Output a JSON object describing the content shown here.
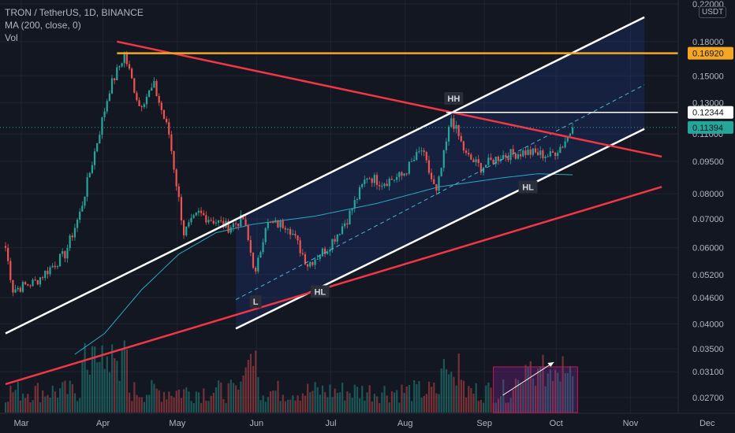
{
  "header": {
    "symbol_line": "TRON / TetherUS, 1D, BINANCE",
    "ma_line": "MA (200, close, 0)",
    "vol_line": "Vol",
    "currency_badge": "USDT"
  },
  "chart_data": {
    "type": "candlestick",
    "symbol": "TRON / TetherUS",
    "interval": "1D",
    "exchange": "BINANCE",
    "scale": "log",
    "x_labels": [
      "Mar",
      "Apr",
      "May",
      "Jun",
      "Jul",
      "Aug",
      "Sep",
      "Oct",
      "Nov",
      "Dec"
    ],
    "y_ticks": [
      0.22,
      0.18,
      0.15,
      0.13,
      0.11,
      0.095,
      0.08,
      0.07,
      0.06,
      0.052,
      0.046,
      0.04,
      0.035,
      0.031,
      0.027
    ],
    "y_tick_labels": [
      "0.22000",
      "0.18000",
      "0.15000",
      "0.13000",
      "0.11000",
      "0.09500",
      "0.08000",
      "0.07000",
      "0.06000",
      "0.05200",
      "0.04600",
      "0.04000",
      "0.03500",
      "0.03100",
      "0.02700"
    ],
    "price_path_anchors": [
      {
        "d": 0,
        "p": 0.06
      },
      {
        "d": 3,
        "p": 0.048
      },
      {
        "d": 12,
        "p": 0.05
      },
      {
        "d": 24,
        "p": 0.058
      },
      {
        "d": 30,
        "p": 0.072
      },
      {
        "d": 36,
        "p": 0.1
      },
      {
        "d": 42,
        "p": 0.14
      },
      {
        "d": 48,
        "p": 0.168
      },
      {
        "d": 54,
        "p": 0.128
      },
      {
        "d": 60,
        "p": 0.142
      },
      {
        "d": 66,
        "p": 0.11
      },
      {
        "d": 72,
        "p": 0.065
      },
      {
        "d": 78,
        "p": 0.072
      },
      {
        "d": 90,
        "p": 0.067
      },
      {
        "d": 96,
        "p": 0.07
      },
      {
        "d": 101,
        "p": 0.052
      },
      {
        "d": 105,
        "p": 0.068
      },
      {
        "d": 114,
        "p": 0.068
      },
      {
        "d": 122,
        "p": 0.055
      },
      {
        "d": 130,
        "p": 0.06
      },
      {
        "d": 138,
        "p": 0.07
      },
      {
        "d": 146,
        "p": 0.088
      },
      {
        "d": 152,
        "p": 0.085
      },
      {
        "d": 160,
        "p": 0.088
      },
      {
        "d": 168,
        "p": 0.101
      },
      {
        "d": 174,
        "p": 0.08
      },
      {
        "d": 180,
        "p": 0.12
      },
      {
        "d": 186,
        "p": 0.098
      },
      {
        "d": 192,
        "p": 0.092
      },
      {
        "d": 200,
        "p": 0.098
      },
      {
        "d": 210,
        "p": 0.1
      },
      {
        "d": 220,
        "p": 0.098
      },
      {
        "d": 225,
        "p": 0.104
      },
      {
        "d": 229,
        "p": 0.11394
      }
    ],
    "ma200_anchors": [
      {
        "d": 28,
        "p": 0.034
      },
      {
        "d": 40,
        "p": 0.038
      },
      {
        "d": 55,
        "p": 0.048
      },
      {
        "d": 70,
        "p": 0.058
      },
      {
        "d": 85,
        "p": 0.065
      },
      {
        "d": 100,
        "p": 0.068
      },
      {
        "d": 125,
        "p": 0.071
      },
      {
        "d": 150,
        "p": 0.076
      },
      {
        "d": 175,
        "p": 0.083
      },
      {
        "d": 200,
        "p": 0.087
      },
      {
        "d": 215,
        "p": 0.089
      },
      {
        "d": 229,
        "p": 0.0885
      }
    ],
    "price_labels": [
      {
        "value": 0.1692,
        "text": "0.16920",
        "color": "#f5a623"
      },
      {
        "value": 0.12344,
        "text": "0.12344",
        "color": "#ffffff"
      },
      {
        "value": 0.11394,
        "text": "0.11394",
        "color": "#26a69a"
      }
    ],
    "annotations": [
      {
        "text": "HH",
        "d": 181,
        "p": 0.133
      },
      {
        "text": "HL",
        "d": 211,
        "p": 0.083
      },
      {
        "text": "HL",
        "d": 127,
        "p": 0.0475
      },
      {
        "text": "L",
        "d": 101,
        "p": 0.045
      }
    ],
    "trend_lines": [
      {
        "name": "ascending-channel-upper",
        "color": "#ffffff",
        "from": {
          "d": 0,
          "p": 0.038
        },
        "to": {
          "d": 258,
          "p": 0.205
        }
      },
      {
        "name": "channel-midline",
        "color": "#4fb3d9",
        "from": {
          "d": 93,
          "p": 0.0455
        },
        "to": {
          "d": 258,
          "p": 0.143
        }
      },
      {
        "name": "ascending-channel-lower",
        "color": "#ffffff",
        "from": {
          "d": 93,
          "p": 0.039
        },
        "to": {
          "d": 258,
          "p": 0.113
        }
      },
      {
        "name": "support-trendline",
        "color": "#f23645",
        "from": {
          "d": 0,
          "p": 0.029
        },
        "to": {
          "d": 265,
          "p": 0.083
        }
      },
      {
        "name": "resistance-trendline",
        "color": "#f23645",
        "from": {
          "d": 45,
          "p": 0.18
        },
        "to": {
          "d": 265,
          "p": 0.0975
        }
      },
      {
        "name": "horizontal-resistance-0.1692",
        "color": "#f5a623",
        "from": {
          "d": 45,
          "p": 0.1692
        },
        "to": {
          "d": 285,
          "p": 0.1692
        }
      },
      {
        "name": "horizontal-level-0.12344",
        "color": "#ffffff",
        "from": {
          "d": 178,
          "p": 0.12344
        },
        "to": {
          "d": 285,
          "p": 0.12344
        }
      }
    ],
    "channel_fill": {
      "color": "#2962ff",
      "from_d": 93,
      "to_d": 258
    },
    "volume_highlight": {
      "from_d": 197,
      "to_d": 231,
      "color": "#9c27b0"
    },
    "grid": true,
    "legend_placement": "top-left"
  }
}
